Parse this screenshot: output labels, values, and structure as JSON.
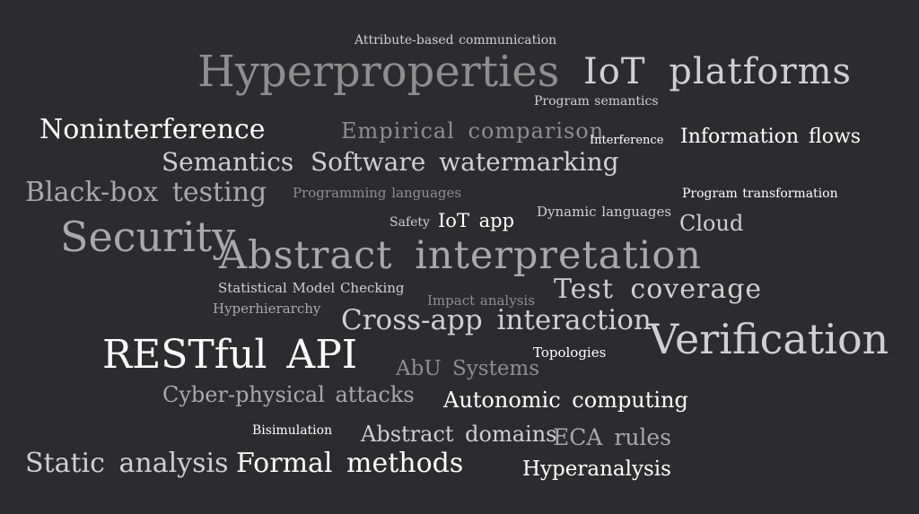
{
  "words": {
    "attribute_based_communication": {
      "text": "Attribute-based communication",
      "weight": 1
    },
    "hyperproperties": {
      "text": "Hyperproperties",
      "weight": 5
    },
    "iot_platforms": {
      "text": "IoT platforms",
      "weight": 4
    },
    "program_semantics": {
      "text": "Program semantics",
      "weight": 1
    },
    "noninterference": {
      "text": "Noninterference",
      "weight": 3
    },
    "empirical_comparison": {
      "text": "Empirical comparison",
      "weight": 2
    },
    "interference": {
      "text": "Interference",
      "weight": 1
    },
    "information_flows": {
      "text": "Information flows",
      "weight": 2
    },
    "semantics": {
      "text": "Semantics",
      "weight": 3
    },
    "software_watermarking": {
      "text": "Software watermarking",
      "weight": 3
    },
    "black_box_testing": {
      "text": "Black-box testing",
      "weight": 3
    },
    "programming_languages": {
      "text": "Programming languages",
      "weight": 1
    },
    "program_transformation": {
      "text": "Program transformation",
      "weight": 1
    },
    "safety": {
      "text": "Safety",
      "weight": 1
    },
    "iot_app": {
      "text": "IoT app",
      "weight": 2
    },
    "dynamic_languages": {
      "text": "Dynamic languages",
      "weight": 1
    },
    "cloud": {
      "text": "Cloud",
      "weight": 2
    },
    "security": {
      "text": "Security",
      "weight": 5
    },
    "abstract_interpretation": {
      "text": "Abstract interpretation",
      "weight": 5
    },
    "statistical_model_checking": {
      "text": "Statistical Model Checking",
      "weight": 1
    },
    "impact_analysis": {
      "text": "Impact analysis",
      "weight": 1
    },
    "test_coverage": {
      "text": "Test coverage",
      "weight": 3
    },
    "hyperhierarchy": {
      "text": "Hyperhierarchy",
      "weight": 1
    },
    "cross_app_interaction": {
      "text": "Cross-app interaction",
      "weight": 3
    },
    "verification": {
      "text": "Verification",
      "weight": 5
    },
    "restful_api": {
      "text": "RESTful API",
      "weight": 5
    },
    "topologies": {
      "text": "Topologies",
      "weight": 1
    },
    "abu_systems": {
      "text": "AbU Systems",
      "weight": 2
    },
    "cyber_physical_attacks": {
      "text": "Cyber-physical attacks",
      "weight": 2
    },
    "autonomic_computing": {
      "text": "Autonomic computing",
      "weight": 2
    },
    "bisimulation": {
      "text": "Bisimulation",
      "weight": 1
    },
    "abstract_domains": {
      "text": "Abstract domains",
      "weight": 2
    },
    "eca_rules": {
      "text": "ECA rules",
      "weight": 2
    },
    "static_analysis": {
      "text": "Static analysis",
      "weight": 3
    },
    "formal_methods": {
      "text": "Formal methods",
      "weight": 3
    },
    "hyperanalysis": {
      "text": "Hyperanalysis",
      "weight": 2
    }
  },
  "colors": {
    "background": "#2c2c2e",
    "white": "#ffffff",
    "light_grey": "#d0d0d0",
    "mid_grey": "#a9a9a9",
    "dark_grey": "#8e8e8e"
  }
}
